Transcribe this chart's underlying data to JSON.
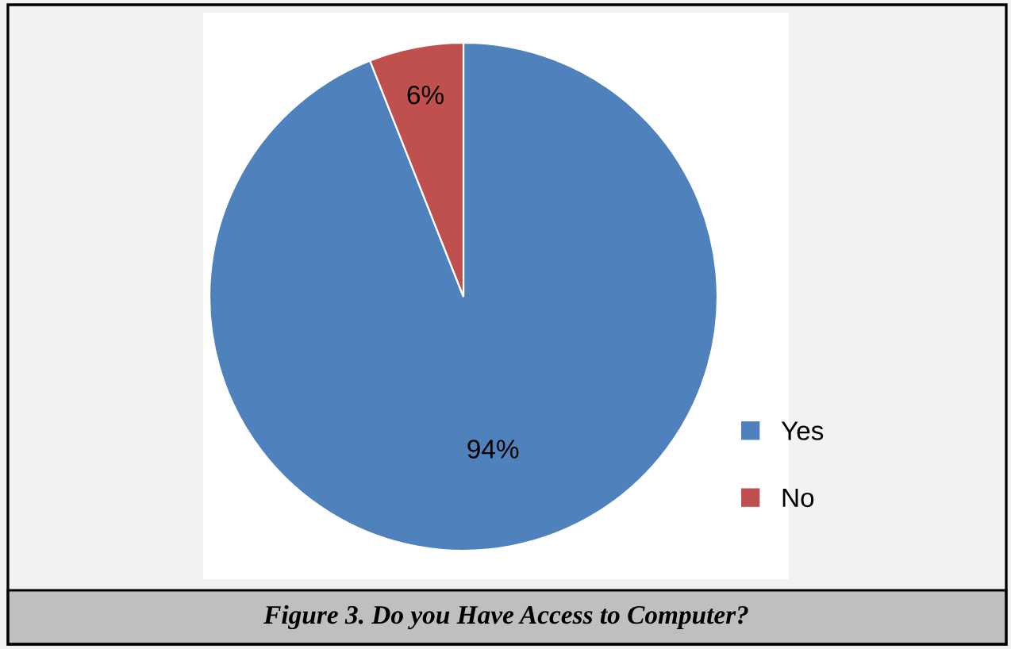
{
  "chart_data": {
    "type": "pie",
    "title": "Figure 3. Do you Have Access to Computer?",
    "categories": [
      "Yes",
      "No"
    ],
    "values": [
      94,
      6
    ],
    "colors": [
      "#4f81bd",
      "#c0504d"
    ],
    "value_labels": [
      "94%",
      "6%"
    ],
    "legend": "right"
  }
}
